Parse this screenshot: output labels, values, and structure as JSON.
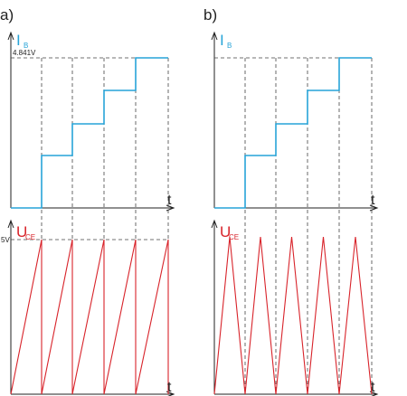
{
  "panels": [
    {
      "label": "a)",
      "top": {
        "y_label": "I",
        "y_label_sub": "B",
        "level_label": "4.841V",
        "x_label": "t"
      },
      "bottom": {
        "y_label": "U",
        "y_label_sub": "CE",
        "level_label": "5V",
        "x_label": "t"
      }
    },
    {
      "label": "b)",
      "top": {
        "y_label": "I",
        "y_label_sub": "B",
        "x_label": "t"
      },
      "bottom": {
        "y_label": "U",
        "y_label_sub": "CE",
        "x_label": "t"
      }
    }
  ]
}
